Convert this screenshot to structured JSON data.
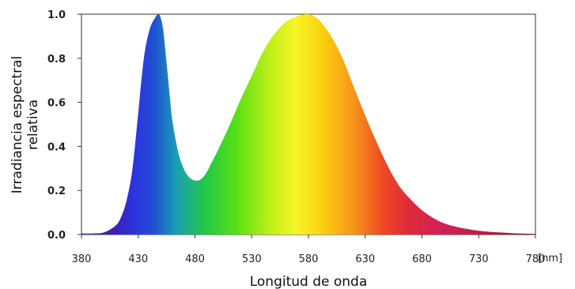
{
  "chart_data": {
    "type": "area",
    "title": "",
    "xlabel": "Longitud de onda",
    "x_unit": "[nm]",
    "ylabel_lines": [
      "Irradiancia espectral",
      "relativa"
    ],
    "xlim": [
      380,
      780
    ],
    "ylim": [
      0,
      1.0
    ],
    "x_ticks": [
      380,
      430,
      480,
      530,
      580,
      630,
      680,
      730,
      780
    ],
    "y_ticks": [
      0.0,
      0.2,
      0.4,
      0.6,
      0.8,
      1.0
    ],
    "y_tick_labels": [
      "0.0",
      "0.2",
      "0.4",
      "0.6",
      "0.8",
      "1.0"
    ],
    "grid": false,
    "fill": "visible-spectrum-gradient",
    "series": [
      {
        "x": [
          380,
          390,
          400,
          410,
          415,
          420,
          425,
          430,
          435,
          440,
          445,
          448,
          450,
          452,
          455,
          458,
          460,
          465,
          470,
          475,
          480,
          485,
          490,
          495,
          500,
          510,
          520,
          530,
          540,
          550,
          560,
          570,
          575,
          580,
          585,
          590,
          600,
          610,
          620,
          630,
          640,
          650,
          660,
          670,
          680,
          690,
          700,
          710,
          720,
          730,
          740,
          750,
          760,
          770,
          780
        ],
        "values": [
          0.005,
          0.005,
          0.01,
          0.04,
          0.08,
          0.16,
          0.3,
          0.55,
          0.8,
          0.93,
          0.985,
          1.0,
          0.98,
          0.93,
          0.78,
          0.62,
          0.52,
          0.38,
          0.3,
          0.26,
          0.245,
          0.25,
          0.28,
          0.33,
          0.38,
          0.49,
          0.61,
          0.72,
          0.83,
          0.91,
          0.965,
          0.99,
          0.998,
          1.0,
          0.99,
          0.97,
          0.9,
          0.8,
          0.67,
          0.54,
          0.42,
          0.31,
          0.22,
          0.16,
          0.11,
          0.075,
          0.05,
          0.035,
          0.025,
          0.017,
          0.012,
          0.009,
          0.006,
          0.004,
          0.003
        ]
      }
    ]
  }
}
